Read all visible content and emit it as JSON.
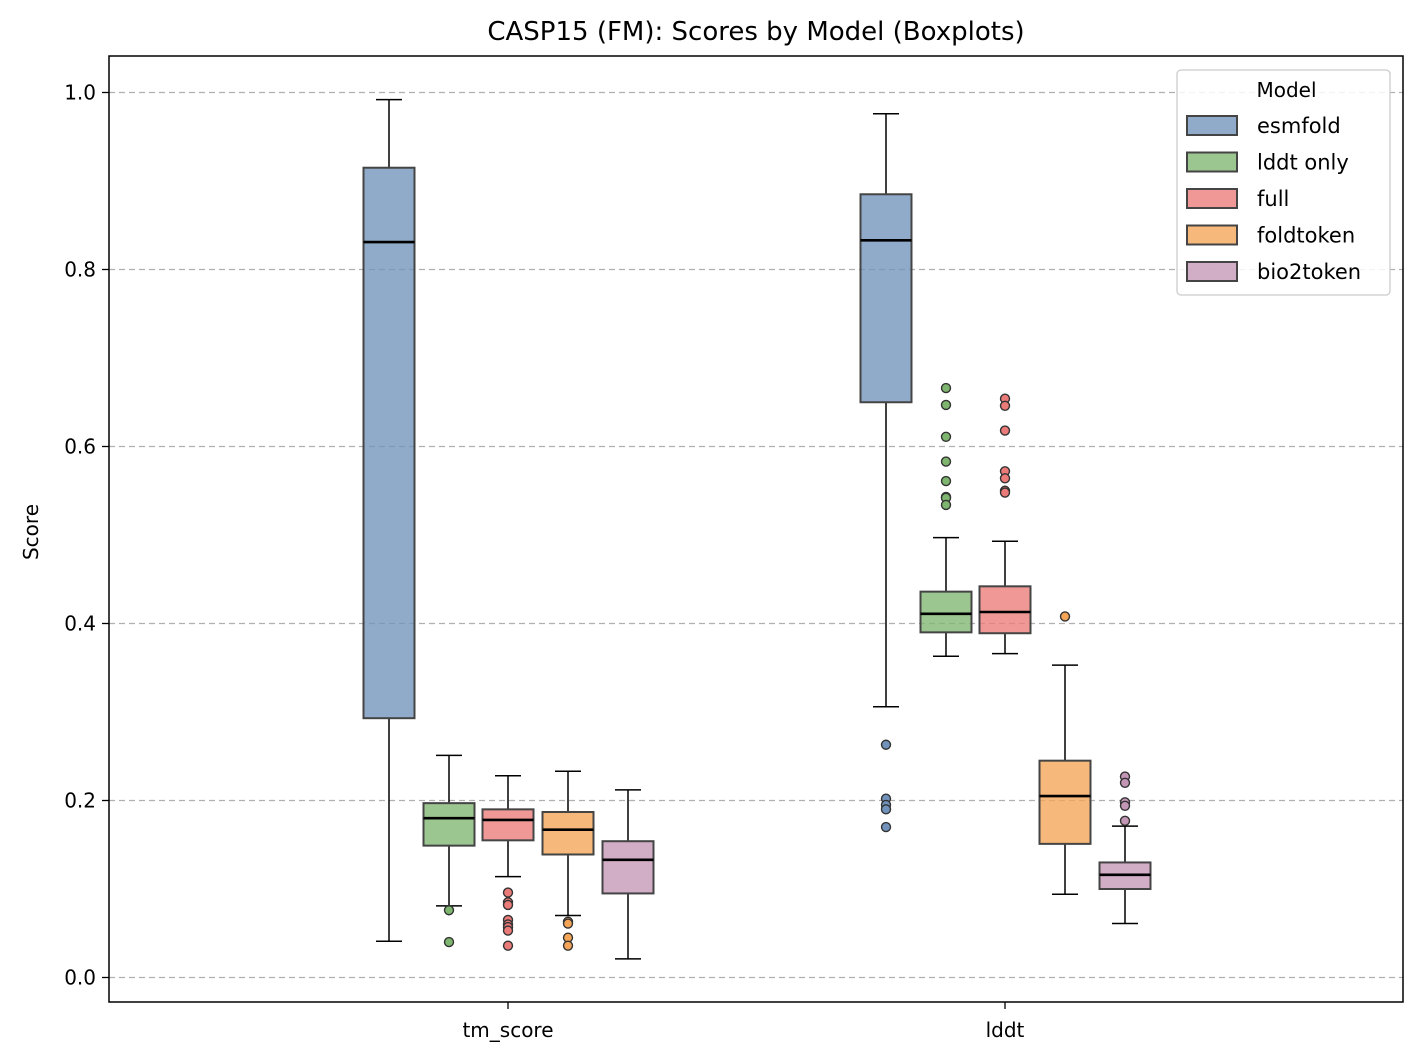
{
  "chart_data": {
    "type": "boxplot",
    "title": "CASP15 (FM): Scores by Model (Boxplots)",
    "xlabel": "",
    "ylabel": "Score",
    "categories": [
      "tm_score",
      "lddt"
    ],
    "ylim": [
      -0.028,
      1.04
    ],
    "yticks": [
      0.0,
      0.2,
      0.4,
      0.6,
      0.8,
      1.0
    ],
    "ytick_labels": [
      "0.0",
      "0.2",
      "0.4",
      "0.6",
      "0.8",
      "1.0"
    ],
    "grid": "y-dashed",
    "legend": {
      "title": "Model",
      "placement": "top-right"
    },
    "series": [
      {
        "name": "esmfold",
        "color": "#7193bb",
        "boxes": [
          {
            "category": "tm_score",
            "whisker_low": 0.041,
            "q1": 0.293,
            "median": 0.831,
            "q3": 0.915,
            "whisker_high": 0.992,
            "outliers": []
          },
          {
            "category": "lddt",
            "whisker_low": 0.306,
            "q1": 0.65,
            "median": 0.833,
            "q3": 0.885,
            "whisker_high": 0.976,
            "outliers": [
              0.263,
              0.202,
              0.195,
              0.19,
              0.17
            ]
          }
        ]
      },
      {
        "name": "lddt only",
        "color": "#7fb66f",
        "boxes": [
          {
            "category": "tm_score",
            "whisker_low": 0.081,
            "q1": 0.149,
            "median": 0.18,
            "q3": 0.197,
            "whisker_high": 0.251,
            "outliers": [
              0.076,
              0.04
            ]
          },
          {
            "category": "lddt",
            "whisker_low": 0.363,
            "q1": 0.39,
            "median": 0.411,
            "q3": 0.436,
            "whisker_high": 0.497,
            "outliers": [
              0.666,
              0.647,
              0.611,
              0.583,
              0.561,
              0.543,
              0.542,
              0.534
            ]
          }
        ]
      },
      {
        "name": "full",
        "color": "#eb7b79",
        "boxes": [
          {
            "category": "tm_score",
            "whisker_low": 0.114,
            "q1": 0.155,
            "median": 0.178,
            "q3": 0.19,
            "whisker_high": 0.228,
            "outliers": [
              0.096,
              0.085,
              0.082,
              0.065,
              0.06,
              0.057,
              0.053,
              0.036
            ]
          },
          {
            "category": "lddt",
            "whisker_low": 0.366,
            "q1": 0.389,
            "median": 0.413,
            "q3": 0.442,
            "whisker_high": 0.493,
            "outliers": [
              0.654,
              0.646,
              0.618,
              0.572,
              0.564,
              0.55,
              0.548
            ]
          }
        ]
      },
      {
        "name": "foldtoken",
        "color": "#f3a456",
        "boxes": [
          {
            "category": "tm_score",
            "whisker_low": 0.07,
            "q1": 0.139,
            "median": 0.167,
            "q3": 0.187,
            "whisker_high": 0.233,
            "outliers": [
              0.063,
              0.061,
              0.045,
              0.036
            ]
          },
          {
            "category": "lddt",
            "whisker_low": 0.094,
            "q1": 0.151,
            "median": 0.205,
            "q3": 0.245,
            "whisker_high": 0.353,
            "outliers": [
              0.408
            ]
          }
        ]
      },
      {
        "name": "bio2token",
        "color": "#c496b6",
        "boxes": [
          {
            "category": "tm_score",
            "whisker_low": 0.021,
            "q1": 0.095,
            "median": 0.133,
            "q3": 0.154,
            "whisker_high": 0.212,
            "outliers": []
          },
          {
            "category": "lddt",
            "whisker_low": 0.061,
            "q1": 0.1,
            "median": 0.116,
            "q3": 0.13,
            "whisker_high": 0.171,
            "outliers": [
              0.227,
              0.22,
              0.198,
              0.194,
              0.177
            ]
          }
        ]
      }
    ]
  }
}
